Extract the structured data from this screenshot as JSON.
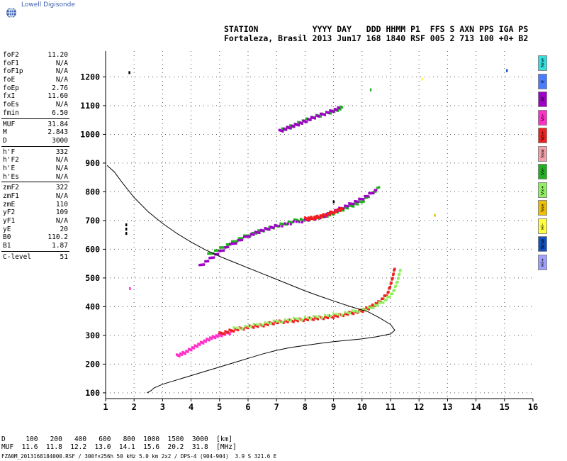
{
  "brand": "Lowell Digisonde",
  "header": {
    "line1": "STATION           YYYY DAY   DDD HHMM P1  FFS S AXN PPS IGA PS",
    "line2": "Fortaleza, Brasil 2013 Jun17 168 1840 RSF 005 2 713 100 +0+ B2"
  },
  "params": [
    [
      {
        "k": "foF2",
        "v": "11.20"
      },
      {
        "k": "foF1",
        "v": "N/A"
      },
      {
        "k": "foF1p",
        "v": "N/A"
      },
      {
        "k": "foE",
        "v": "N/A"
      },
      {
        "k": "foEp",
        "v": "2.76"
      },
      {
        "k": "fxI",
        "v": "11.60"
      },
      {
        "k": "foEs",
        "v": "N/A"
      },
      {
        "k": "fmin",
        "v": "6.50"
      }
    ],
    [
      {
        "k": "MUF",
        "v": "31.84"
      },
      {
        "k": "M",
        "v": "2.843"
      },
      {
        "k": "D",
        "v": "3000"
      }
    ],
    [
      {
        "k": "h'F",
        "v": "332"
      },
      {
        "k": "h'F2",
        "v": "N/A"
      },
      {
        "k": "h'E",
        "v": "N/A"
      },
      {
        "k": "h'Es",
        "v": "N/A"
      }
    ],
    [
      {
        "k": "zmF2",
        "v": "322"
      },
      {
        "k": "zmF1",
        "v": "N/A"
      },
      {
        "k": "zmE",
        "v": "110"
      },
      {
        "k": "yF2",
        "v": "109"
      },
      {
        "k": "yF1",
        "v": "N/A"
      },
      {
        "k": "yE",
        "v": "20"
      },
      {
        "k": "B0",
        "v": "110.2"
      },
      {
        "k": "B1",
        "v": "1.87"
      }
    ],
    [
      {
        "k": "C-level",
        "v": "51"
      }
    ]
  ],
  "legend": [
    {
      "label": "Nne",
      "color": "#33e0e0"
    },
    {
      "label": "E",
      "color": "#4a7cff"
    },
    {
      "label": "W",
      "color": "#a000c8"
    },
    {
      "label": "Vo-",
      "color": "#ff30c8"
    },
    {
      "label": "Vo+",
      "color": "#f02020"
    },
    {
      "label": "Ssw",
      "color": "#f4a0a8"
    },
    {
      "label": "Vx-",
      "color": "#20b020"
    },
    {
      "label": "Vx+",
      "color": "#90f060"
    },
    {
      "label": "Sse",
      "color": "#f0c000"
    },
    {
      "label": "Hi-",
      "color": "#ffff40"
    },
    {
      "label": "Nnw",
      "color": "#1050c0"
    },
    {
      "label": "Hi+",
      "color": "#a0a0ff"
    }
  ],
  "dtable": {
    "line1": "D     100   200   400   600   800  1000  1500  3000  [km]",
    "line2": "MUF  11.6  11.8  12.2  13.0  14.1  15.6  20.2  31.8  [MHz]"
  },
  "footer": "FZA0M_2013168184000.RSF / 300f×256h 50 kHz 5.0 km 2x2 / DPS-4 (904-904)  3.9 S 321.6 E",
  "chart_data": {
    "type": "scatter",
    "xlim": [
      1,
      16
    ],
    "ylim": [
      80,
      1290
    ],
    "x_ticks": [
      1,
      2,
      3,
      4,
      5,
      6,
      7,
      8,
      9,
      10,
      11,
      12,
      13,
      14,
      15,
      16
    ],
    "y_ticks": [
      100,
      200,
      300,
      400,
      500,
      600,
      700,
      800,
      900,
      1000,
      1100,
      1200
    ],
    "grid": true,
    "profile": [
      [
        2.45,
        100
      ],
      [
        2.6,
        108
      ],
      [
        2.7,
        117
      ],
      [
        3.0,
        130
      ],
      [
        3.5,
        145
      ],
      [
        4.0,
        160
      ],
      [
        4.5,
        175
      ],
      [
        5.0,
        190
      ],
      [
        5.5,
        205
      ],
      [
        6.0,
        220
      ],
      [
        6.5,
        235
      ],
      [
        7.0,
        248
      ],
      [
        7.5,
        258
      ],
      [
        8.0,
        265
      ],
      [
        8.5,
        272
      ],
      [
        9.0,
        278
      ],
      [
        9.5,
        283
      ],
      [
        10.0,
        288
      ],
      [
        10.5,
        295
      ],
      [
        11.0,
        305
      ],
      [
        11.15,
        318
      ],
      [
        11.0,
        338
      ],
      [
        10.6,
        362
      ],
      [
        10.2,
        383
      ],
      [
        9.6,
        400
      ],
      [
        9.0,
        420
      ],
      [
        8.5,
        437
      ],
      [
        8.0,
        455
      ],
      [
        7.5,
        475
      ],
      [
        7.0,
        495
      ],
      [
        6.5,
        515
      ],
      [
        6.0,
        535
      ],
      [
        5.5,
        555
      ],
      [
        5.0,
        575
      ],
      [
        4.5,
        598
      ],
      [
        4.0,
        625
      ],
      [
        3.5,
        655
      ],
      [
        3.0,
        690
      ],
      [
        2.5,
        730
      ],
      [
        2.0,
        780
      ],
      [
        1.6,
        830
      ],
      [
        1.3,
        870
      ],
      [
        1.05,
        892
      ]
    ],
    "echo_traces": [
      {
        "name": "Vo-",
        "color": "#ff30c8",
        "points": [
          [
            3.5,
            228
          ],
          [
            3.8,
            240
          ],
          [
            4.1,
            258
          ],
          [
            4.4,
            275
          ],
          [
            4.7,
            290
          ],
          [
            5.0,
            300
          ],
          [
            5.4,
            310
          ]
        ]
      },
      {
        "name": "Vo+",
        "color": "#f02020",
        "points": [
          [
            5.0,
            305
          ],
          [
            5.5,
            318
          ],
          [
            6.0,
            328
          ],
          [
            6.5,
            335
          ],
          [
            7.0,
            345
          ],
          [
            7.5,
            350
          ],
          [
            8.0,
            355
          ],
          [
            8.5,
            360
          ],
          [
            9.0,
            365
          ],
          [
            9.5,
            375
          ],
          [
            10.0,
            385
          ],
          [
            10.3,
            398
          ],
          [
            10.6,
            415
          ],
          [
            10.9,
            445
          ],
          [
            11.05,
            490
          ],
          [
            11.15,
            535
          ]
        ]
      },
      {
        "name": "Vx+",
        "color": "#90f060",
        "points": [
          [
            5.5,
            322
          ],
          [
            6.5,
            340
          ],
          [
            7.5,
            354
          ],
          [
            8.5,
            364
          ],
          [
            9.5,
            378
          ],
          [
            10.3,
            394
          ],
          [
            10.8,
            420
          ],
          [
            11.1,
            450
          ],
          [
            11.25,
            490
          ],
          [
            11.35,
            530
          ]
        ]
      },
      {
        "name": "Vx-",
        "color": "#20b020",
        "points": [
          [
            4.6,
            580
          ],
          [
            5.2,
            610
          ],
          [
            5.8,
            640
          ],
          [
            6.5,
            665
          ],
          [
            7.0,
            680
          ],
          [
            7.7,
            700
          ],
          [
            8.2,
            705
          ],
          [
            8.7,
            715
          ],
          [
            9.0,
            725
          ],
          [
            9.5,
            745
          ],
          [
            10.0,
            765
          ],
          [
            10.6,
            815
          ]
        ]
      },
      {
        "name": "W",
        "color": "#a000c8",
        "points": [
          [
            4.3,
            540
          ],
          [
            4.8,
            575
          ],
          [
            5.3,
            610
          ],
          [
            6.0,
            645
          ],
          [
            6.5,
            665
          ],
          [
            7.0,
            680
          ],
          [
            8.0,
            700
          ],
          [
            8.6,
            712
          ],
          [
            9.0,
            730
          ],
          [
            9.5,
            752
          ],
          [
            10.0,
            775
          ],
          [
            10.5,
            805
          ]
        ]
      },
      {
        "name": "Vo+",
        "color": "#f02020",
        "points": [
          [
            8.0,
            705
          ],
          [
            8.3,
            708
          ],
          [
            8.6,
            715
          ],
          [
            9.0,
            728
          ],
          [
            9.3,
            740
          ]
        ]
      },
      {
        "name": "Vx-",
        "color": "#20b020",
        "points": [
          [
            7.2,
            1015
          ],
          [
            7.6,
            1030
          ],
          [
            8.0,
            1048
          ],
          [
            8.5,
            1065
          ],
          [
            9.0,
            1080
          ],
          [
            9.3,
            1092
          ]
        ]
      },
      {
        "name": "W",
        "color": "#a000c8",
        "points": [
          [
            7.1,
            1010
          ],
          [
            7.5,
            1025
          ],
          [
            7.9,
            1040
          ],
          [
            8.3,
            1058
          ],
          [
            8.8,
            1075
          ],
          [
            9.2,
            1090
          ]
        ]
      }
    ],
    "scattered": [
      {
        "x": 1.83,
        "y": 1215,
        "color": "#000000"
      },
      {
        "x": 15.08,
        "y": 1222,
        "color": "#1050c0"
      },
      {
        "x": 10.3,
        "y": 1155,
        "color": "#20b020"
      },
      {
        "x": 12.1,
        "y": 1192,
        "color": "#ffff40"
      },
      {
        "x": 12.55,
        "y": 718,
        "color": "#f0c000"
      },
      {
        "x": 1.72,
        "y": 685,
        "color": "#000000"
      },
      {
        "x": 1.72,
        "y": 670,
        "color": "#000000"
      },
      {
        "x": 1.72,
        "y": 655,
        "color": "#000000"
      },
      {
        "x": 1.85,
        "y": 463,
        "color": "#ff30c8"
      },
      {
        "x": 9.0,
        "y": 765,
        "color": "#000000"
      }
    ]
  }
}
